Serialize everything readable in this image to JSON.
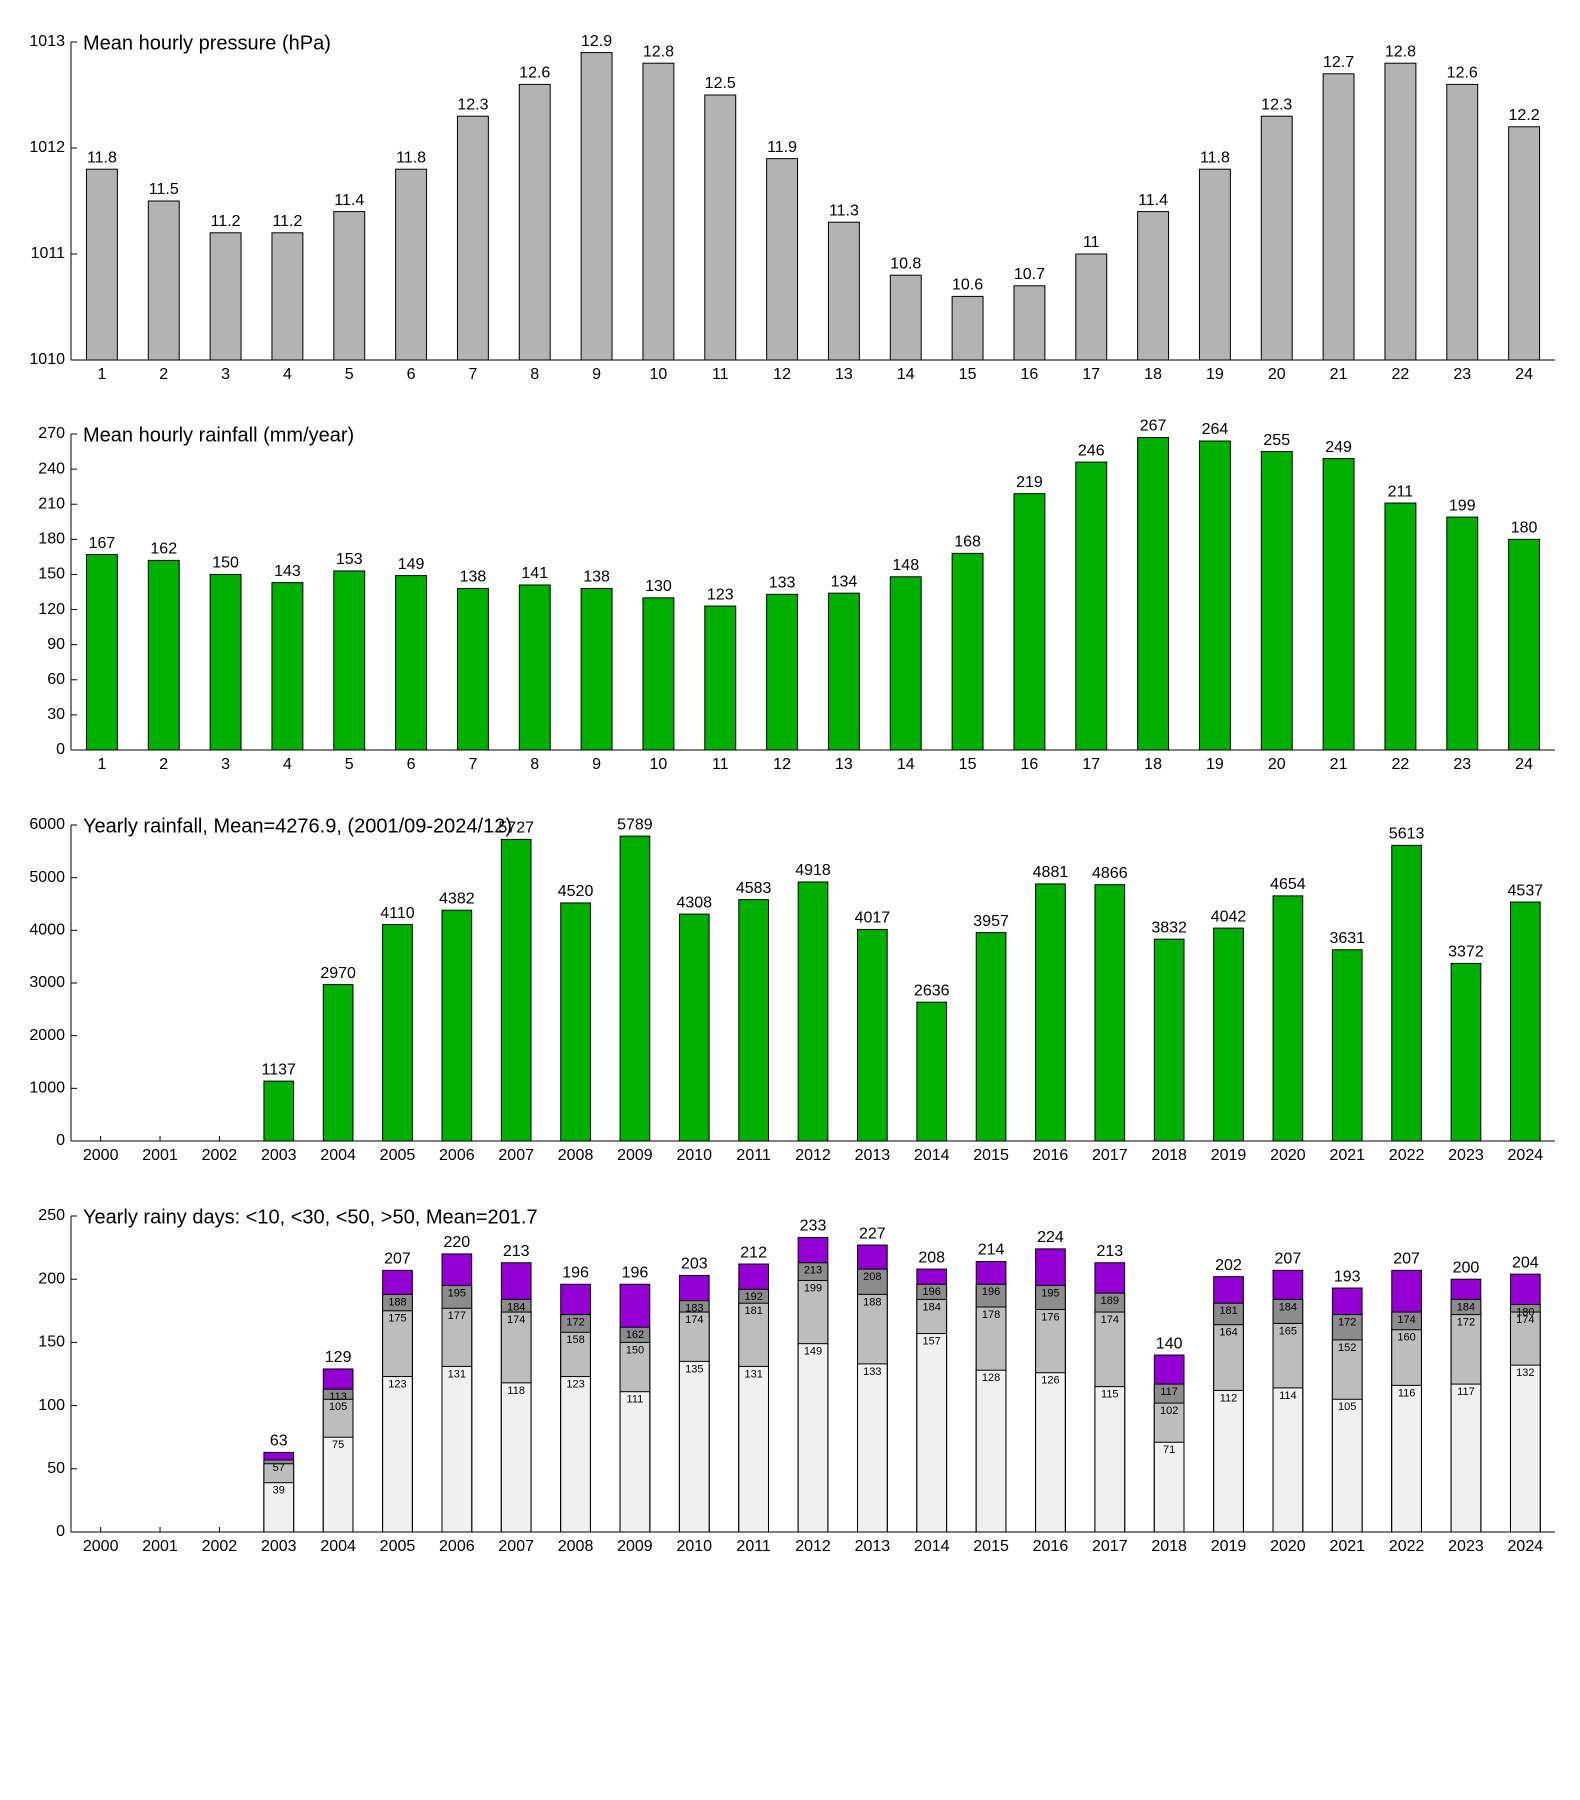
{
  "chart_data": [
    {
      "type": "bar",
      "title": "Mean hourly pressure (hPa)",
      "categories": [
        "1",
        "2",
        "3",
        "4",
        "5",
        "6",
        "7",
        "8",
        "9",
        "10",
        "11",
        "12",
        "13",
        "14",
        "15",
        "16",
        "17",
        "18",
        "19",
        "20",
        "21",
        "22",
        "23",
        "24"
      ],
      "values": [
        1011.8,
        1011.5,
        1011.2,
        1011.2,
        1011.4,
        1011.8,
        1012.3,
        1012.6,
        1012.9,
        1012.8,
        1012.5,
        1011.9,
        1011.3,
        1010.8,
        1010.6,
        1010.7,
        1011,
        1011.4,
        1011.8,
        1012.3,
        1012.7,
        1012.8,
        1012.6,
        1012.2
      ],
      "value_labels": [
        "11.8",
        "11.5",
        "11.2",
        "11.2",
        "11.4",
        "11.8",
        "12.3",
        "12.6",
        "12.9",
        "12.8",
        "12.5",
        "11.9",
        "11.3",
        "10.8",
        "10.6",
        "10.7",
        "11",
        "11.4",
        "11.8",
        "12.3",
        "12.7",
        "12.8",
        "12.6",
        "12.2"
      ],
      "color": "#b3b3b3",
      "ylim": [
        1010,
        1013
      ],
      "yticks": [
        1010,
        1011,
        1012,
        1013
      ]
    },
    {
      "type": "bar",
      "title": "Mean hourly rainfall (mm/year)",
      "categories": [
        "1",
        "2",
        "3",
        "4",
        "5",
        "6",
        "7",
        "8",
        "9",
        "10",
        "11",
        "12",
        "13",
        "14",
        "15",
        "16",
        "17",
        "18",
        "19",
        "20",
        "21",
        "22",
        "23",
        "24"
      ],
      "values": [
        167,
        162,
        150,
        143,
        153,
        149,
        138,
        141,
        138,
        130,
        123,
        133,
        134,
        148,
        168,
        219,
        246,
        267,
        264,
        255,
        249,
        211,
        199,
        180
      ],
      "color": "#00b000",
      "ylim": [
        0,
        270
      ],
      "yticks": [
        0,
        30,
        60,
        90,
        120,
        150,
        180,
        210,
        240,
        270
      ]
    },
    {
      "type": "bar",
      "title": "Yearly rainfall, Mean=4276.9, (2001/09-2024/12)",
      "categories": [
        "2000",
        "2001",
        "2002",
        "2003",
        "2004",
        "2005",
        "2006",
        "2007",
        "2008",
        "2009",
        "2010",
        "2011",
        "2012",
        "2013",
        "2014",
        "2015",
        "2016",
        "2017",
        "2018",
        "2019",
        "2020",
        "2021",
        "2022",
        "2023",
        "2024"
      ],
      "values": [
        null,
        null,
        null,
        1137,
        2970,
        4110,
        4382,
        5727,
        4520,
        5789,
        4308,
        4583,
        4918,
        4017,
        2636,
        3957,
        4881,
        4866,
        3832,
        4042,
        4654,
        3631,
        5613,
        3372,
        4537
      ],
      "color": "#00b000",
      "ylim": [
        0,
        6000
      ],
      "yticks": [
        0,
        1000,
        2000,
        3000,
        4000,
        5000,
        6000
      ]
    },
    {
      "type": "overlay-bar",
      "title": "Yearly rainy days: <10, <30, <50, >50, Mean=201.7",
      "categories": [
        "2000",
        "2001",
        "2002",
        "2003",
        "2004",
        "2005",
        "2006",
        "2007",
        "2008",
        "2009",
        "2010",
        "2011",
        "2012",
        "2013",
        "2014",
        "2015",
        "2016",
        "2017",
        "2018",
        "2019",
        "2020",
        "2021",
        "2022",
        "2023",
        "2024"
      ],
      "series": [
        {
          "color": "#f0f0f0",
          "values": [
            null,
            null,
            null,
            39,
            75,
            123,
            131,
            118,
            123,
            111,
            135,
            131,
            149,
            133,
            157,
            128,
            126,
            115,
            71,
            112,
            114,
            105,
            116,
            117,
            132
          ]
        },
        {
          "color": "#bdbdbd",
          "values": [
            null,
            null,
            null,
            54,
            105,
            175,
            177,
            174,
            158,
            150,
            174,
            181,
            199,
            188,
            184,
            178,
            176,
            174,
            102,
            164,
            165,
            152,
            160,
            172,
            174
          ]
        },
        {
          "color": "#8c8c8c",
          "values": [
            null,
            null,
            null,
            57,
            113,
            188,
            195,
            184,
            172,
            162,
            183,
            192,
            213,
            208,
            196,
            196,
            195,
            189,
            117,
            181,
            184,
            172,
            174,
            184,
            180
          ]
        },
        {
          "color": "#9400d3",
          "values": [
            null,
            null,
            null,
            63,
            129,
            207,
            220,
            213,
            196,
            196,
            203,
            212,
            233,
            227,
            208,
            214,
            224,
            213,
            140,
            202,
            207,
            193,
            207,
            200,
            204
          ]
        }
      ],
      "ylim": [
        0,
        250
      ],
      "yticks": [
        0,
        50,
        100,
        150,
        200,
        250
      ]
    }
  ]
}
